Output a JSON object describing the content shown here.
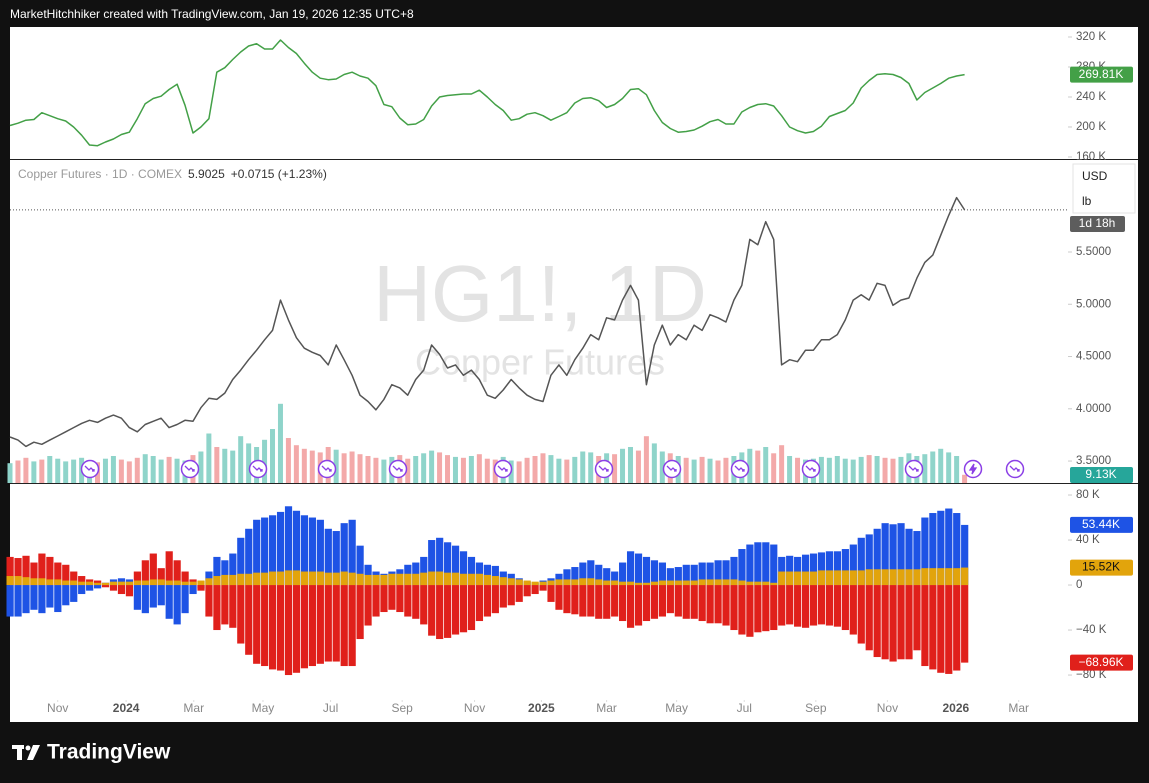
{
  "header": {
    "attribution": "MarketHitchhiker created with TradingView.com, Jan 19, 2026 12:35 UTC+8"
  },
  "footer": {
    "logo": "TradingView"
  },
  "chart_data": [
    {
      "type": "line",
      "series": [
        {
          "color": "#43a047",
          "last_label": "269.81K",
          "values": [
            202,
            205,
            209,
            210,
            219,
            215,
            211,
            208,
            200,
            189,
            176,
            175,
            180,
            184,
            190,
            193,
            211,
            231,
            238,
            241,
            250,
            257,
            229,
            192,
            200,
            211,
            273,
            279,
            290,
            300,
            308,
            311,
            304,
            304,
            316,
            306,
            298,
            285,
            273,
            265,
            263,
            264,
            270,
            273,
            268,
            265,
            255,
            230,
            227,
            212,
            203,
            204,
            210,
            228,
            240,
            242,
            243,
            244,
            244,
            249,
            240,
            230,
            222,
            209,
            211,
            217,
            219,
            215,
            209,
            214,
            219,
            232,
            238,
            239,
            235,
            226,
            230,
            238,
            250,
            251,
            243,
            222,
            206,
            198,
            193,
            194,
            196,
            201,
            207,
            210,
            204,
            204,
            220,
            226,
            230,
            231,
            228,
            215,
            200,
            195,
            192,
            194,
            201,
            214,
            218,
            222,
            232,
            252,
            262,
            270,
            271,
            270,
            266,
            258,
            236,
            246,
            252,
            258,
            265,
            268,
            269.81
          ]
        }
      ],
      "ylim": [
        157.3,
        332
      ],
      "yticks": [
        {
          "value": 160,
          "label": "160 K"
        },
        {
          "value": 200,
          "label": "200 K"
        },
        {
          "value": 240,
          "label": "240 K"
        },
        {
          "value": 280,
          "label": "280 K"
        },
        {
          "value": 320,
          "label": "320 K"
        }
      ]
    },
    {
      "type": "line",
      "title": "HG1!, 1D",
      "subtitle": "Copper Futures",
      "symbol": "Copper Futures · 1D · COMEX",
      "last_price": "5.9025",
      "change": "+0.0715 (+1.23%)",
      "currency": "USD",
      "unit": "lb",
      "countdown": "1d 18h",
      "series": [
        {
          "color": "#555555",
          "values": [
            3.73,
            3.7,
            3.64,
            3.68,
            3.66,
            3.7,
            3.74,
            3.78,
            3.82,
            3.86,
            3.89,
            3.87,
            3.91,
            3.94,
            3.91,
            3.82,
            3.78,
            3.85,
            3.88,
            3.91,
            3.82,
            3.85,
            3.89,
            3.88,
            4.01,
            4.1,
            4.09,
            4.15,
            4.28,
            4.37,
            4.47,
            4.56,
            4.66,
            4.75,
            5.04,
            4.85,
            4.68,
            4.58,
            4.54,
            4.51,
            4.42,
            4.61,
            4.47,
            4.32,
            4.13,
            4.07,
            3.99,
            4.09,
            4.23,
            4.2,
            4.13,
            4.28,
            4.37,
            4.61,
            4.52,
            4.39,
            4.42,
            4.32,
            4.37,
            4.28,
            4.13,
            4.1,
            4.18,
            4.28,
            4.2,
            4.13,
            4.09,
            4.07,
            4.32,
            4.42,
            4.32,
            4.47,
            4.58,
            4.71,
            4.66,
            4.87,
            4.85,
            5.04,
            5.18,
            5.04,
            4.23,
            4.61,
            4.8,
            4.61,
            4.71,
            4.66,
            4.8,
            4.75,
            4.9,
            4.87,
            4.83,
            5.04,
            5.18,
            5.62,
            5.57,
            5.79,
            5.62,
            4.42,
            4.47,
            4.45,
            4.56,
            4.56,
            4.66,
            4.66,
            4.71,
            4.85,
            5.04,
            5.09,
            5.04,
            5.2,
            5.18,
            4.99,
            5.04,
            5.06,
            5.25,
            5.4,
            5.47,
            5.66,
            5.85,
            6.02,
            5.9025
          ]
        }
      ],
      "volume": {
        "up_color": "#8fd4ca",
        "down_color": "#f3a9a9",
        "label_color": "#26a69a",
        "last_label": "9.13K",
        "values": [
          22,
          25,
          28,
          24,
          26,
          30,
          27,
          24,
          26,
          28,
          25,
          23,
          27,
          30,
          26,
          24,
          28,
          32,
          30,
          26,
          29,
          27,
          25,
          31,
          35,
          55,
          40,
          38,
          36,
          52,
          44,
          40,
          48,
          60,
          88,
          50,
          42,
          38,
          36,
          34,
          40,
          37,
          33,
          35,
          32,
          30,
          28,
          26,
          29,
          31,
          27,
          30,
          33,
          36,
          34,
          31,
          29,
          28,
          30,
          32,
          27,
          26,
          29,
          25,
          24,
          28,
          30,
          33,
          31,
          27,
          26,
          29,
          35,
          34,
          30,
          33,
          32,
          38,
          40,
          36,
          52,
          44,
          35,
          33,
          30,
          28,
          26,
          29,
          27,
          25,
          28,
          30,
          34,
          38,
          36,
          40,
          33,
          42,
          30,
          28,
          26,
          27,
          29,
          28,
          30,
          27,
          26,
          29,
          31,
          30,
          28,
          27,
          29,
          33,
          30,
          32,
          35,
          38,
          34,
          30,
          9.13
        ]
      },
      "ylim": [
        3.29,
        6.38
      ],
      "yticks": [
        {
          "value": 3.5,
          "label": "3.5000"
        },
        {
          "value": 4,
          "label": "4.0000"
        },
        {
          "value": 4.5,
          "label": "4.5000"
        },
        {
          "value": 5,
          "label": "5.0000"
        },
        {
          "value": 5.5,
          "label": "5.5000"
        }
      ]
    },
    {
      "type": "bar",
      "series": [
        {
          "color": "#1e53e5",
          "last_label": "53.44K",
          "values": [
            -28,
            -28,
            -25,
            -22,
            -25,
            -20,
            -24,
            -18,
            -15,
            -8,
            -5,
            -3,
            2,
            5,
            6,
            5,
            -22,
            -25,
            -20,
            -18,
            -30,
            -35,
            -25,
            -8,
            -3,
            12,
            25,
            22,
            28,
            42,
            50,
            58,
            60,
            62,
            65,
            70,
            66,
            62,
            60,
            58,
            50,
            48,
            55,
            58,
            35,
            18,
            12,
            10,
            12,
            14,
            18,
            20,
            25,
            40,
            42,
            38,
            35,
            30,
            25,
            20,
            18,
            17,
            12,
            10,
            6,
            3,
            2,
            4,
            6,
            10,
            14,
            16,
            20,
            22,
            18,
            15,
            12,
            20,
            30,
            28,
            25,
            22,
            20,
            15,
            16,
            18,
            18,
            20,
            20,
            22,
            22,
            25,
            32,
            36,
            38,
            38,
            36,
            25,
            26,
            25,
            27,
            28,
            29,
            30,
            30,
            32,
            36,
            42,
            45,
            50,
            55,
            54,
            55,
            50,
            48,
            60,
            64,
            66,
            68,
            64,
            53.44
          ]
        },
        {
          "color": "#e0201b",
          "last_label": "−68.96K",
          "values": [
            25,
            24,
            26,
            20,
            28,
            25,
            20,
            18,
            12,
            8,
            5,
            4,
            -2,
            -5,
            -8,
            -10,
            12,
            22,
            28,
            15,
            30,
            22,
            12,
            5,
            -5,
            -28,
            -40,
            -35,
            -38,
            -52,
            -62,
            -70,
            -72,
            -75,
            -76,
            -80,
            -78,
            -74,
            -72,
            -70,
            -68,
            -68,
            -72,
            -72,
            -48,
            -36,
            -28,
            -24,
            -22,
            -24,
            -28,
            -30,
            -35,
            -45,
            -48,
            -47,
            -44,
            -42,
            -40,
            -32,
            -28,
            -25,
            -20,
            -18,
            -15,
            -10,
            -8,
            -5,
            -15,
            -22,
            -25,
            -26,
            -28,
            -28,
            -30,
            -30,
            -28,
            -32,
            -38,
            -36,
            -32,
            -30,
            -28,
            -25,
            -28,
            -30,
            -30,
            -32,
            -34,
            -34,
            -36,
            -40,
            -44,
            -46,
            -42,
            -41,
            -40,
            -36,
            -35,
            -37,
            -38,
            -36,
            -35,
            -36,
            -37,
            -40,
            -44,
            -52,
            -58,
            -64,
            -66,
            -68,
            -66,
            -66,
            -58,
            -72,
            -75,
            -78,
            -79,
            -76,
            -68.96
          ]
        },
        {
          "color": "#e2a40c",
          "last_label": "15.52K",
          "values": [
            8,
            8,
            7,
            6,
            6,
            5,
            5,
            4,
            4,
            3,
            3,
            2,
            2,
            3,
            3,
            3,
            4,
            4,
            5,
            5,
            4,
            4,
            3,
            3,
            4,
            6,
            8,
            9,
            9,
            10,
            10,
            11,
            11,
            12,
            12,
            13,
            13,
            12,
            12,
            12,
            11,
            11,
            12,
            11,
            10,
            9,
            9,
            9,
            10,
            10,
            10,
            10,
            11,
            12,
            12,
            11,
            11,
            10,
            10,
            10,
            9,
            8,
            7,
            6,
            5,
            4,
            3,
            3,
            4,
            5,
            5,
            5,
            6,
            6,
            5,
            4,
            4,
            3,
            3,
            2,
            2,
            3,
            4,
            4,
            4,
            4,
            4,
            5,
            5,
            5,
            5,
            5,
            4,
            3,
            3,
            3,
            2,
            12,
            12,
            12,
            12,
            12,
            13,
            13,
            13,
            13,
            13,
            13,
            14,
            14,
            14,
            14,
            14,
            14,
            14,
            15,
            15,
            15,
            15,
            15,
            15.52
          ]
        }
      ],
      "ylim": [
        -100.4,
        89.8
      ],
      "yticks": [
        {
          "value": -80,
          "label": "−80 K"
        },
        {
          "value": -40,
          "label": "−40 K"
        },
        0,
        {
          "value": 40,
          "label": "40 K"
        },
        {
          "value": 80,
          "label": "80 K"
        }
      ],
      "xlim": [
        0,
        133
      ],
      "xticks": [
        {
          "value": 6.0,
          "label": "Nov"
        },
        {
          "value": 14.6,
          "label": "2024"
        },
        {
          "value": 23.1,
          "label": "Mar"
        },
        {
          "value": 31.8,
          "label": "May"
        },
        {
          "value": 40.3,
          "label": "Jul"
        },
        {
          "value": 49.3,
          "label": "Sep"
        },
        {
          "value": 58.4,
          "label": "Nov"
        },
        {
          "value": 66.8,
          "label": "2025"
        },
        {
          "value": 75.0,
          "label": "Mar"
        },
        {
          "value": 83.8,
          "label": "May"
        },
        {
          "value": 92.3,
          "label": "Jul"
        },
        {
          "value": 101.3,
          "label": "Sep"
        },
        {
          "value": 110.3,
          "label": "Nov"
        },
        {
          "value": 118.9,
          "label": "2026"
        },
        {
          "value": 126.8,
          "label": "Mar"
        }
      ]
    }
  ]
}
